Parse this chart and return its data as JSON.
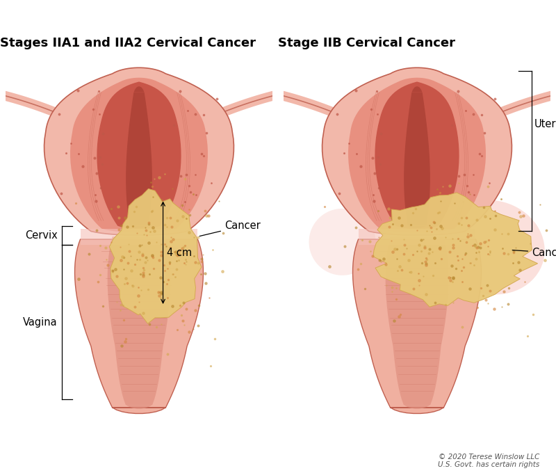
{
  "title_left": "Stages IIA1 and IIA2 Cervical Cancer",
  "title_right": "Stage IIB Cervical Cancer",
  "label_cervix": "Cervix",
  "label_vagina": "Vagina",
  "label_cancer_left": "Cancer",
  "label_cancer_right": "Cancer",
  "label_uterus": "Uterus",
  "label_size": "4 cm",
  "copyright": "© 2020 Terese Winslow LLC\nU.S. Govt. has certain rights",
  "bg_color": "#ffffff",
  "title_fontsize": 13,
  "label_fontsize": 10.5,
  "colors": {
    "uterus_outer": "#f2b8aa",
    "uterus_mid": "#e89080",
    "uterus_inner_wall": "#d97060",
    "uterus_cavity": "#c85548",
    "uterus_cavity_dark": "#b04438",
    "cervix_highlight": "#f5ccc4",
    "vagina_outer": "#f0b0a0",
    "vagina_inner": "#e09080",
    "vagina_rugae": "#c87060",
    "cancer_base": "#e8c878",
    "cancer_mid": "#d4a850",
    "cancer_dark": "#b88830",
    "cancer_orange": "#d48840",
    "striation": "#c06858",
    "border": "#c06050",
    "tube_fill": "#f2b8aa",
    "tube_border": "#c87060",
    "pink_dot": "#c05848",
    "parametrium_glow": "#f8c8c0"
  }
}
